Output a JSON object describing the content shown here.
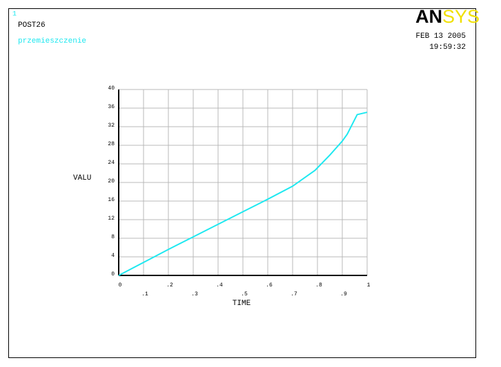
{
  "chart_data": {
    "type": "line",
    "plot_number": "1",
    "title": "POST26",
    "subtitle": "przemieszczenie",
    "logo_left": "AN",
    "logo_right": "SYS",
    "date": "FEB 13 2005",
    "time": "19:59:32",
    "xlabel": "TIME",
    "ylabel": "VALU",
    "x": [
      0,
      0.1,
      0.2,
      0.3,
      0.4,
      0.5,
      0.6,
      0.7,
      0.79,
      0.85,
      0.9,
      0.92,
      0.96,
      1.0
    ],
    "series": [
      {
        "color": "#1ee8f0",
        "values": [
          0,
          2.8,
          5.6,
          8.3,
          11,
          13.7,
          16.4,
          19.2,
          22.6,
          25.9,
          28.9,
          30.4,
          34.6,
          35.1
        ]
      }
    ],
    "xlim": [
      0,
      1
    ],
    "ylim": [
      0,
      40
    ],
    "xticks": [
      0,
      {
        "value": 0.1,
        "label": ".1"
      },
      {
        "value": 0.2,
        "label": ".2"
      },
      {
        "value": 0.3,
        "label": ".3"
      },
      {
        "value": 0.4,
        "label": ".4"
      },
      {
        "value": 0.5,
        "label": ".5"
      },
      {
        "value": 0.6,
        "label": ".6"
      },
      {
        "value": 0.7,
        "label": ".7"
      },
      {
        "value": 0.8,
        "label": ".8"
      },
      {
        "value": 0.9,
        "label": ".9"
      },
      1
    ],
    "yticks": [
      0,
      4,
      8,
      12,
      16,
      20,
      24,
      28,
      32,
      36,
      40
    ],
    "grid": true
  }
}
